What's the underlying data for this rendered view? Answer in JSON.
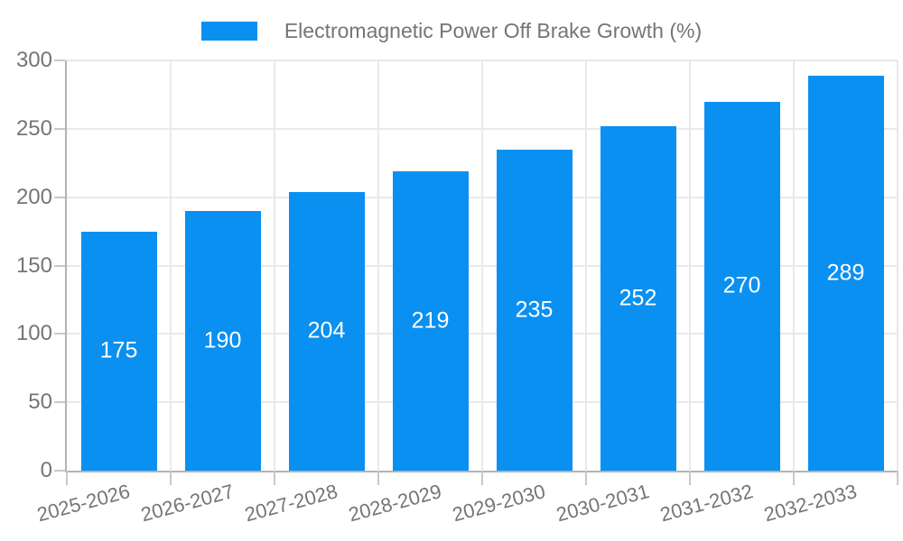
{
  "chart_data": {
    "type": "bar",
    "title": "Electromagnetic Power Off Brake Growth (%)",
    "categories": [
      "2025-2026",
      "2026-2027",
      "2027-2028",
      "2028-2029",
      "2029-2030",
      "2030-2031",
      "2031-2032",
      "2032-2033"
    ],
    "values": [
      175,
      190,
      204,
      219,
      235,
      252,
      270,
      289
    ],
    "xlabel": "",
    "ylabel": "",
    "ylim": [
      0,
      300
    ],
    "yticks": [
      0,
      50,
      100,
      150,
      200,
      250,
      300
    ],
    "grid": true,
    "legend_position": "top",
    "value_labels": "inside-middle",
    "colors": {
      "bar": "#0a90f0",
      "value_label": "#ffffff",
      "axis_text": "#757575",
      "axis_line": "#b3b3b3",
      "gridline": "#e9e9e9",
      "tick_mark": "#c9c9c9",
      "background": "#ffffff"
    }
  }
}
